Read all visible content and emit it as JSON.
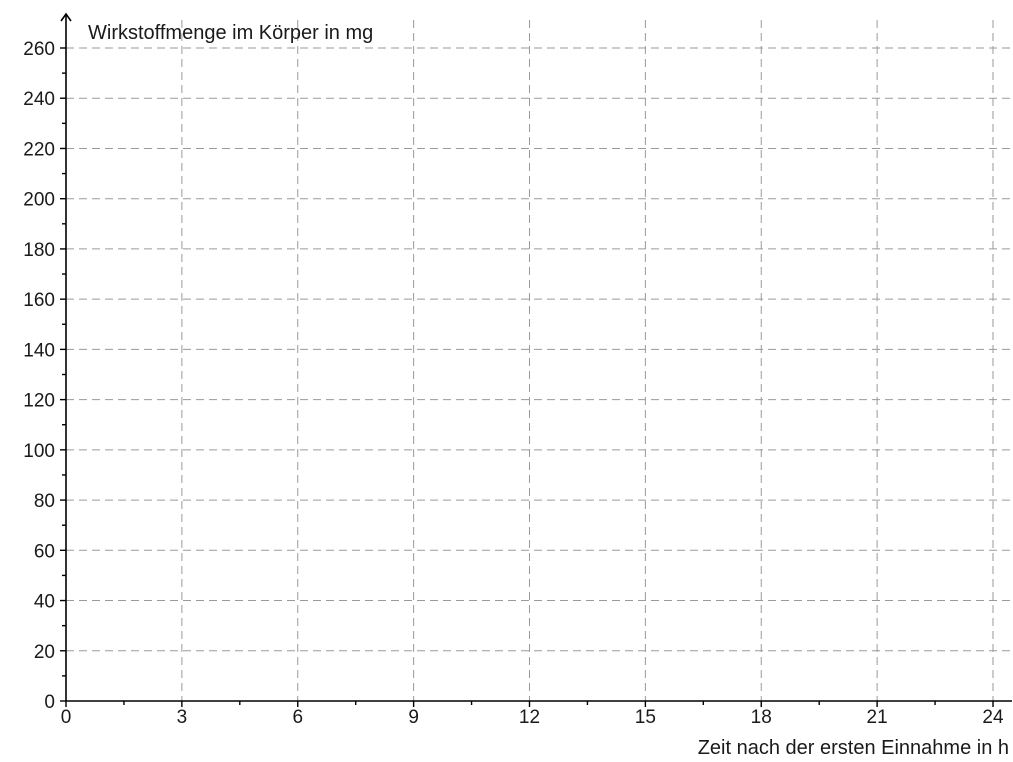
{
  "chart_data": {
    "type": "line",
    "title": "",
    "xlabel": "Zeit nach der ersten Einnahme in h",
    "ylabel": "Wirkstoffmenge im Körper in mg",
    "xlim": [
      0,
      24
    ],
    "ylim": [
      0,
      260
    ],
    "x_ticks": [
      0,
      3,
      6,
      9,
      12,
      15,
      18,
      21,
      24
    ],
    "y_ticks": [
      0,
      20,
      40,
      60,
      80,
      100,
      120,
      140,
      160,
      180,
      200,
      220,
      240,
      260
    ],
    "x_minor_step": 1.5,
    "y_minor_step": 10,
    "grid": true,
    "series": []
  }
}
